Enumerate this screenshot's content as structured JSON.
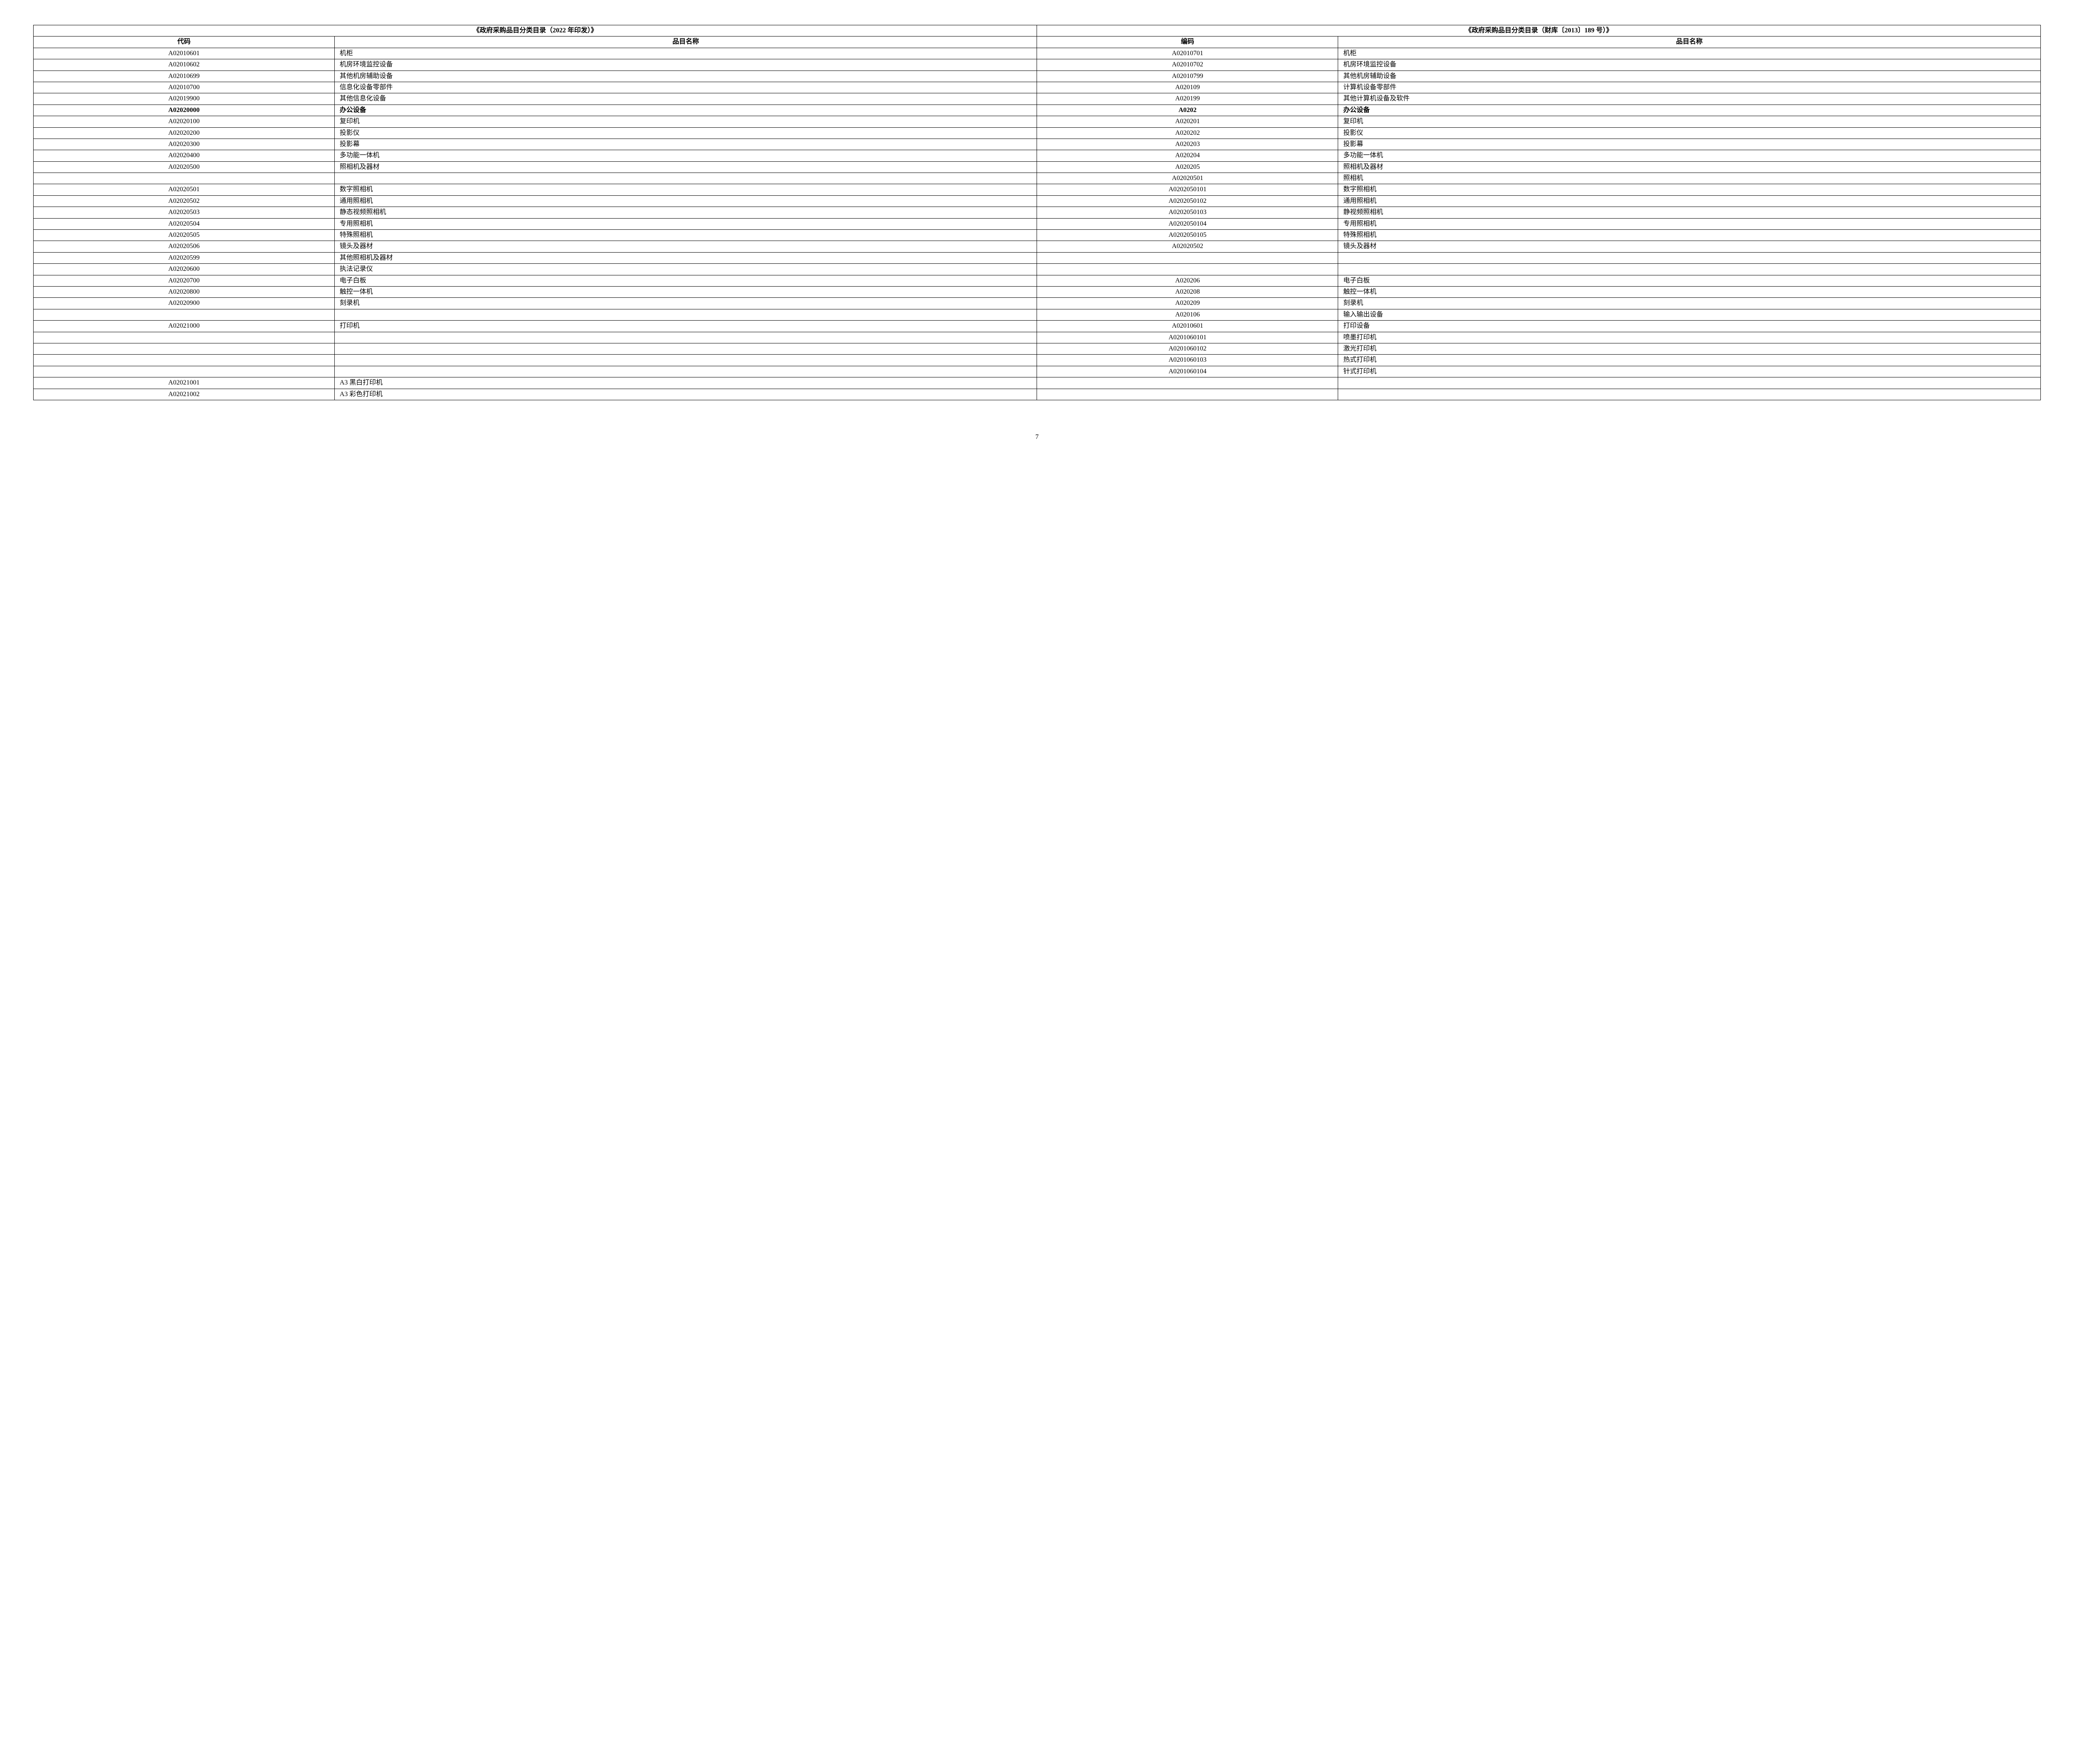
{
  "table": {
    "header_group_left": "《政府采购品目分类目录（2022 年印发）》",
    "header_group_right": "《政府采购品目分类目录（财库〔2013〕189 号）》",
    "col1": "代码",
    "col2": "品目名称",
    "col3": "编码",
    "col4": "品目名称",
    "rows": [
      {
        "c1": "A02010601",
        "n1": "机柜",
        "c2": "A02010701",
        "n2": "机柜"
      },
      {
        "c1": "A02010602",
        "n1": "机房环境监控设备",
        "c2": "A02010702",
        "n2": "机房环境监控设备"
      },
      {
        "c1": "A02010699",
        "n1": "其他机房辅助设备",
        "c2": "A02010799",
        "n2": "其他机房辅助设备"
      },
      {
        "c1": "A02010700",
        "n1": "信息化设备零部件",
        "c2": "A020109",
        "n2": "计算机设备零部件"
      },
      {
        "c1": "A02019900",
        "n1": "其他信息化设备",
        "c2": "A020199",
        "n2": "其他计算机设备及软件"
      },
      {
        "c1": "A02020000",
        "n1": "办公设备",
        "c2": "A0202",
        "n2": "办公设备",
        "bold": true
      },
      {
        "c1": "A02020100",
        "n1": "复印机",
        "c2": "A020201",
        "n2": "复印机"
      },
      {
        "c1": "A02020200",
        "n1": "投影仪",
        "c2": "A020202",
        "n2": "投影仪"
      },
      {
        "c1": "A02020300",
        "n1": "投影幕",
        "c2": "A020203",
        "n2": "投影幕"
      },
      {
        "c1": "A02020400",
        "n1": "多功能一体机",
        "c2": "A020204",
        "n2": "多功能一体机"
      },
      {
        "c1": "A02020500",
        "n1": "照相机及器材",
        "c2": "A020205",
        "n2": "照相机及器材"
      },
      {
        "c1": "",
        "n1": "",
        "c2": "A02020501",
        "n2": "照相机"
      },
      {
        "c1": "A02020501",
        "n1": "数字照相机",
        "c2": "A0202050101",
        "n2": "数字照相机"
      },
      {
        "c1": "A02020502",
        "n1": "通用照相机",
        "c2": "A0202050102",
        "n2": "通用照相机"
      },
      {
        "c1": "A02020503",
        "n1": "静态视频照相机",
        "c2": "A0202050103",
        "n2": "静视频照相机"
      },
      {
        "c1": "A02020504",
        "n1": "专用照相机",
        "c2": "A0202050104",
        "n2": "专用照相机"
      },
      {
        "c1": "A02020505",
        "n1": "特殊照相机",
        "c2": "A0202050105",
        "n2": "特殊照相机"
      },
      {
        "c1": "A02020506",
        "n1": "镜头及器材",
        "c2": "A02020502",
        "n2": "镜头及器材"
      },
      {
        "c1": "A02020599",
        "n1": "其他照相机及器材",
        "c2": "",
        "n2": ""
      },
      {
        "c1": "A02020600",
        "n1": "执法记录仪",
        "c2": "",
        "n2": ""
      },
      {
        "c1": "A02020700",
        "n1": "电子白板",
        "c2": "A020206",
        "n2": "电子白板"
      },
      {
        "c1": "A02020800",
        "n1": "触控一体机",
        "c2": "A020208",
        "n2": "触控一体机"
      },
      {
        "c1": "A02020900",
        "n1": "刻录机",
        "c2": "A020209",
        "n2": "刻录机"
      },
      {
        "c1": "",
        "n1": "",
        "c2": "A020106",
        "n2": "输入输出设备"
      },
      {
        "c1": "A02021000",
        "n1": "打印机",
        "c2": "A02010601",
        "n2": "打印设备"
      },
      {
        "c1": "",
        "n1": "",
        "c2": "A0201060101",
        "n2": "喷墨打印机"
      },
      {
        "c1": "",
        "n1": "",
        "c2": "A0201060102",
        "n2": "激光打印机"
      },
      {
        "c1": "",
        "n1": "",
        "c2": "A0201060103",
        "n2": "热式打印机"
      },
      {
        "c1": "",
        "n1": "",
        "c2": "A0201060104",
        "n2": "针式打印机"
      },
      {
        "c1": "A02021001",
        "n1": "A3 黑白打印机",
        "c2": "",
        "n2": ""
      },
      {
        "c1": "A02021002",
        "n1": "A3 彩色打印机",
        "c2": "",
        "n2": ""
      }
    ]
  },
  "page_number": "7"
}
